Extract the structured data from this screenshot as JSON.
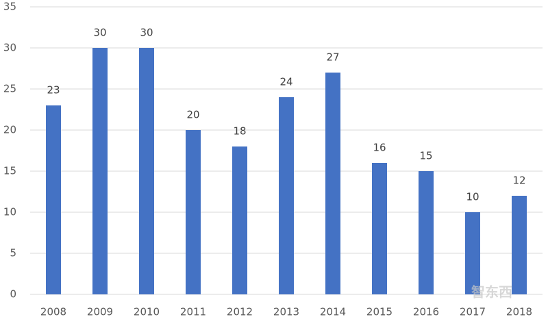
{
  "chart_data": {
    "type": "bar",
    "categories": [
      "2008",
      "2009",
      "2010",
      "2011",
      "2012",
      "2013",
      "2014",
      "2015",
      "2016",
      "2017",
      "2018"
    ],
    "values": [
      23,
      30,
      30,
      20,
      18,
      24,
      27,
      16,
      15,
      10,
      12
    ],
    "color": "#4472c4",
    "ylim": [
      0,
      35
    ],
    "yticks": [
      0,
      5,
      10,
      15,
      20,
      25,
      30,
      35
    ],
    "grid": true,
    "watermark": "智东西"
  }
}
